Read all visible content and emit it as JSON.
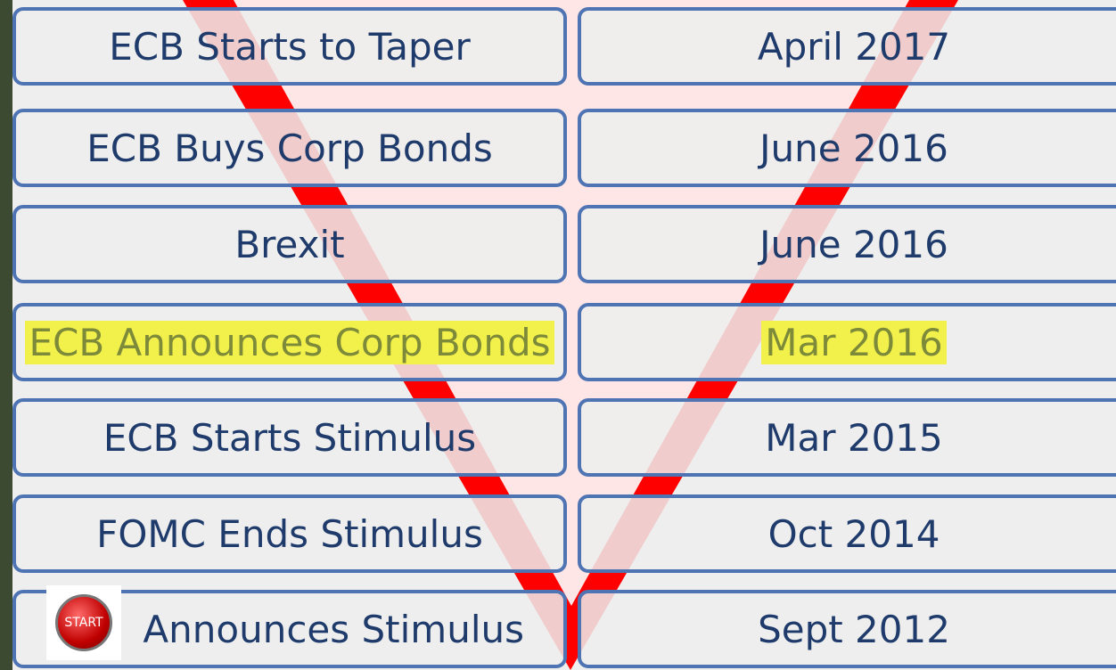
{
  "rows": [
    [
      "ECB Starts to Taper",
      "April 2017"
    ],
    [
      "ECB Buys Corp Bonds",
      "June 2016"
    ],
    [
      "Brexit",
      "June 2016"
    ],
    [
      "ECB Announces Corp Bonds",
      "Mar 2016"
    ],
    [
      "ECB Starts Stimulus",
      "Mar 2015"
    ],
    [
      "FOMC Ends Stimulus",
      "Oct 2014"
    ],
    [
      "Announces Stimulus",
      "Sept 2012"
    ]
  ],
  "highlight_row": 3,
  "start_button": "START"
}
